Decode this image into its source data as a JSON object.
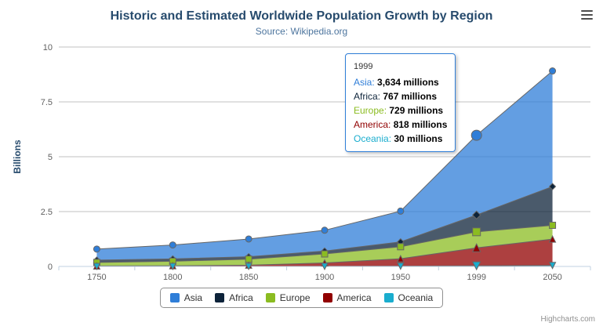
{
  "chart_data": {
    "type": "area",
    "stacked": true,
    "title": "Historic and Estimated Worldwide Population Growth by Region",
    "subtitle": "Source: Wikipedia.org",
    "categories": [
      "1750",
      "1800",
      "1850",
      "1900",
      "1950",
      "1999",
      "2050"
    ],
    "xlabel": "",
    "ylabel": "Billions",
    "ylim": [
      0,
      10
    ],
    "yticks": [
      0,
      2.5,
      5,
      7.5,
      10
    ],
    "unit": "millions",
    "grid": true,
    "legend_position": "bottom",
    "hover_index": 5,
    "series": [
      {
        "name": "Asia",
        "color": "#2f7ed8",
        "marker": "circle",
        "values": [
          502,
          635,
          809,
          947,
          1402,
          3634,
          5268
        ]
      },
      {
        "name": "Africa",
        "color": "#0d233a",
        "marker": "diamond",
        "values": [
          106,
          107,
          111,
          133,
          221,
          767,
          1766
        ]
      },
      {
        "name": "Europe",
        "color": "#8bbc21",
        "marker": "square",
        "values": [
          163,
          203,
          276,
          408,
          547,
          729,
          628
        ]
      },
      {
        "name": "America",
        "color": "#910000",
        "marker": "triangle",
        "values": [
          18,
          31,
          54,
          156,
          339,
          818,
          1201
        ]
      },
      {
        "name": "Oceania",
        "color": "#1aadce",
        "marker": "triangle-down",
        "values": [
          2,
          2,
          2,
          6,
          13,
          30,
          46
        ]
      }
    ],
    "line_color": "#666666",
    "fill_opacity": 0.75
  },
  "tooltip": {
    "header": "1999",
    "border_color": "#2f7ed8",
    "rows": [
      {
        "name": "Asia",
        "value": "3,634 millions",
        "color": "#2f7ed8"
      },
      {
        "name": "Africa",
        "value": "767 millions",
        "color": "#0d233a"
      },
      {
        "name": "Europe",
        "value": "729 millions",
        "color": "#8bbc21"
      },
      {
        "name": "America",
        "value": "818 millions",
        "color": "#910000"
      },
      {
        "name": "Oceania",
        "value": "30 millions",
        "color": "#1aadce"
      }
    ]
  },
  "icons": {
    "export_menu": "hamburger-menu-icon"
  },
  "credits": "Highcharts.com"
}
